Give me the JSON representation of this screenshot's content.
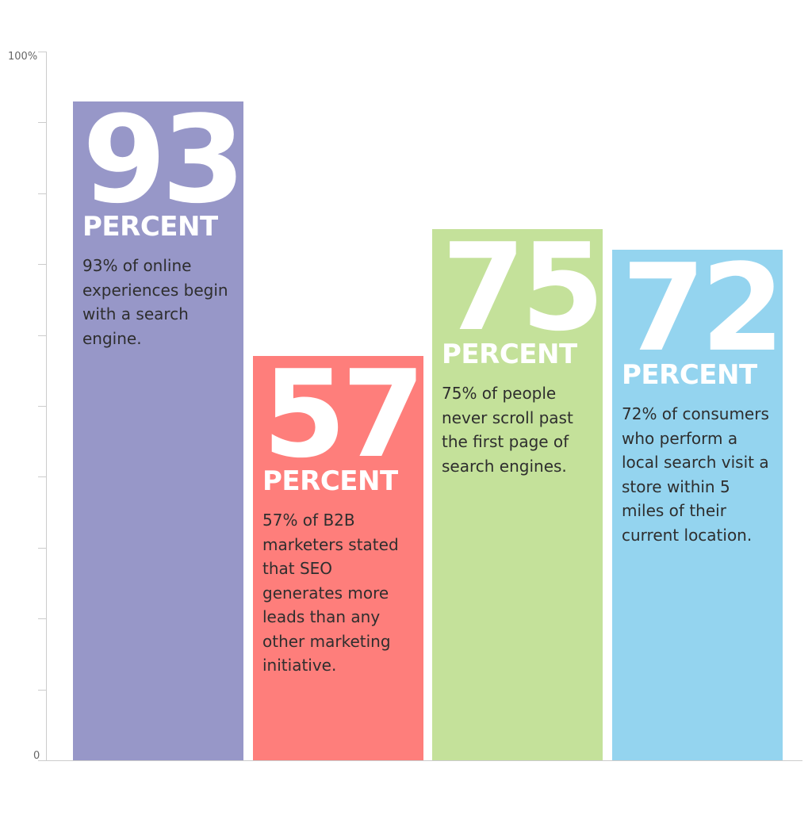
{
  "chart_data": {
    "type": "bar",
    "categories": [
      "93",
      "57",
      "75",
      "72"
    ],
    "values": [
      93,
      57,
      75,
      72
    ],
    "ylim": [
      0,
      100
    ],
    "y_tick_labels": [
      "0",
      "100%"
    ],
    "y_minor_ticks": 10,
    "grid": false,
    "colors": [
      "#9797c8",
      "#fe7e7b",
      "#c4e19a",
      "#94d4ef"
    ],
    "bars": [
      {
        "number": "93",
        "unit": "PERCENT",
        "text": "93% of online experiences begin with a search engine."
      },
      {
        "number": "57",
        "unit": "PERCENT",
        "text": "57% of B2B marketers stated that SEO generates more leads than any other marketing initiative."
      },
      {
        "number": "75",
        "unit": "PERCENT",
        "text": "75% of people never scroll past the first page of search engines."
      },
      {
        "number": "72",
        "unit": "PERCENT",
        "text": "72% of consumers who perform a local search visit a store within 5 miles of their current location."
      }
    ]
  }
}
